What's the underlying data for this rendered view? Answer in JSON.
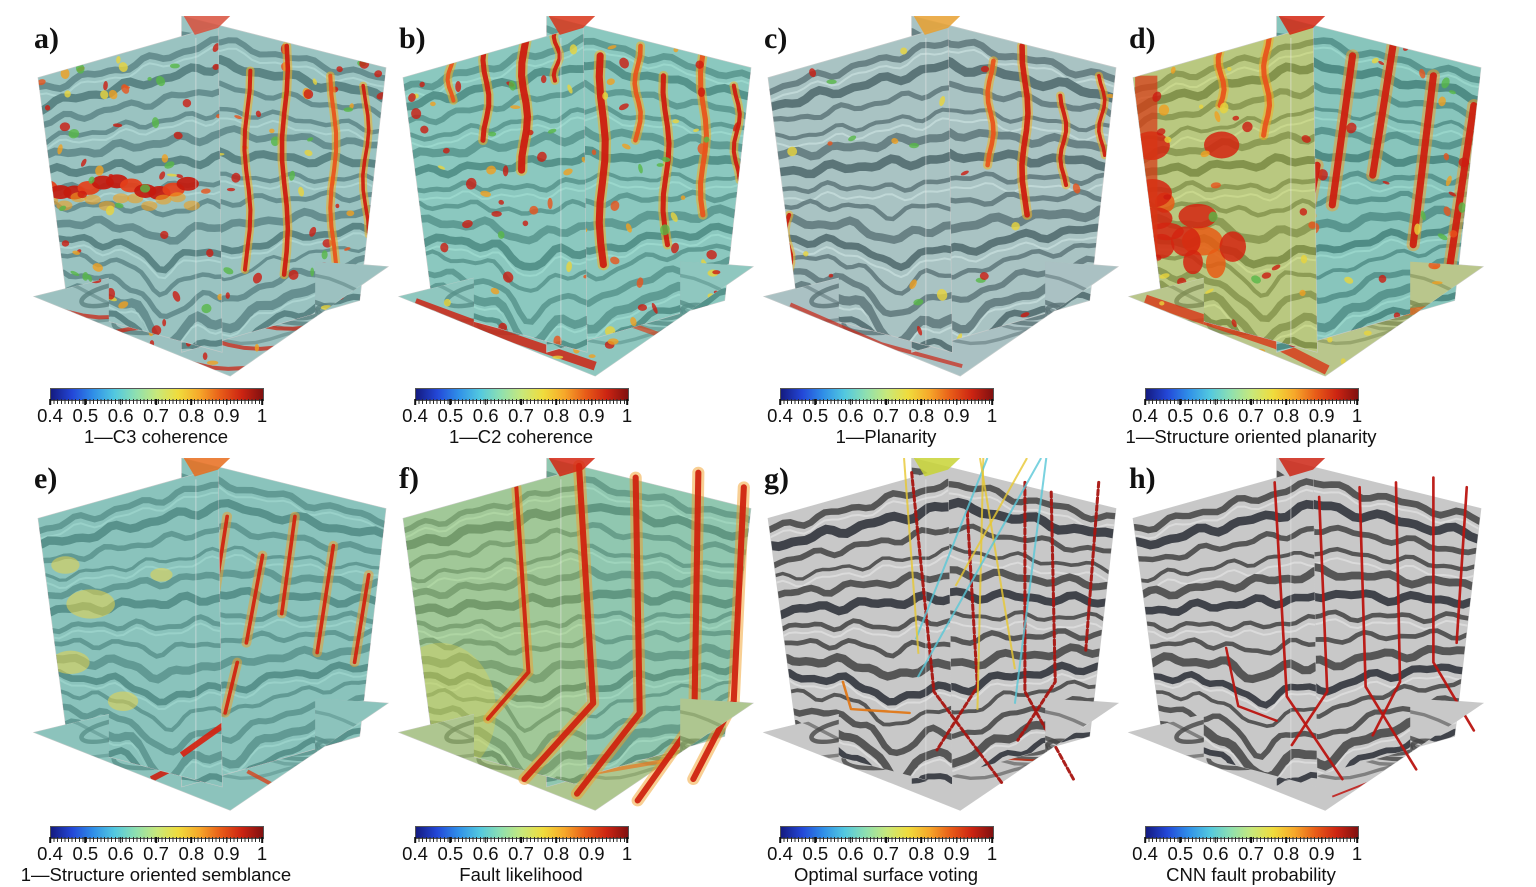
{
  "figure": {
    "background": "#ffffff",
    "description_panels": [
      {
        "id": "a",
        "label": "a)",
        "caption": "1—C3 coherence"
      },
      {
        "id": "b",
        "label": "b)",
        "caption": "1—C2 coherence"
      },
      {
        "id": "c",
        "label": "c)",
        "caption": "1—Planarity"
      },
      {
        "id": "d",
        "label": "d)",
        "caption": "1—Structure oriented planarity"
      },
      {
        "id": "e",
        "label": "e)",
        "caption": "1—Structure oriented semblance"
      },
      {
        "id": "f",
        "label": "f)",
        "caption": "Fault likelihood"
      },
      {
        "id": "g",
        "label": "g)",
        "caption": "Optimal surface voting"
      },
      {
        "id": "h",
        "label": "h)",
        "caption": "CNN fault probability"
      }
    ],
    "colorbar": {
      "min": 0.4,
      "max": 1,
      "tick_labels": [
        "0.4",
        "0.5",
        "0.6",
        "0.7",
        "0.8",
        "0.9",
        "1"
      ],
      "gradient": [
        "#141b80",
        "#2347d8",
        "#2f8fe8",
        "#52c8e0",
        "#8ee0b0",
        "#c8e87a",
        "#f0dc3c",
        "#f6a82a",
        "#e85c18",
        "#cc2412",
        "#801010"
      ]
    },
    "render_colors": {
      "fault_red": "#c01410",
      "seismic_dark": "#44474e",
      "seismic_light": "#b4b6ba",
      "attribute_teal_wash": "#6ed7c8",
      "attribute_yellow": "#e8d44a"
    }
  }
}
